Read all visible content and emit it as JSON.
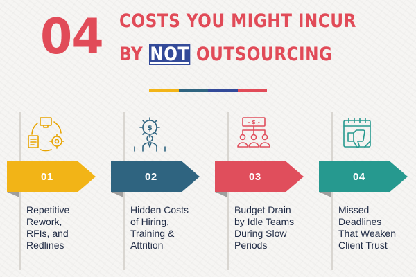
{
  "header": {
    "number": "04",
    "title_line1": "COSTS YOU MIGHT INCUR",
    "title_line2_prefix": "BY",
    "title_line2_highlight": "NOT",
    "title_line2_suffix": "OUTSOURCING"
  },
  "colors": {
    "title_red": "#e14b58",
    "highlight_blue": "#334a99",
    "divider": [
      "#f2b417",
      "#2f6480",
      "#334a99",
      "#e14b58"
    ],
    "text_navy": "#1f2a44"
  },
  "items": [
    {
      "number": "01",
      "description": "Repetitive\nRework,\nRFIs, and\nRedlines",
      "color": "#f2b417",
      "icon": "workflow-cycle-icon"
    },
    {
      "number": "02",
      "description": "Hidden Costs\nof Hiring,\nTraining &\nAttrition",
      "color": "#2f6480",
      "icon": "gear-employee-icon"
    },
    {
      "number": "03",
      "description": "Budget Drain\nby Idle Teams\nDuring Slow\nPeriods",
      "color": "#e04e5c",
      "icon": "budget-team-icon"
    },
    {
      "number": "04",
      "description": "Missed\nDeadlines\nThat Weaken\nClient Trust",
      "color": "#26998f",
      "icon": "calendar-thumbs-down-icon"
    }
  ]
}
